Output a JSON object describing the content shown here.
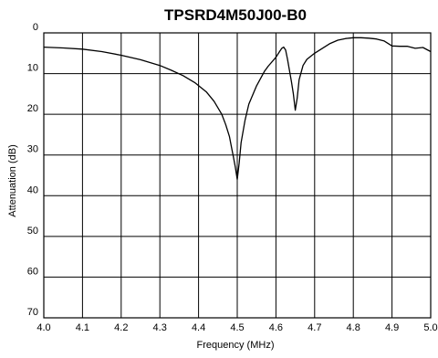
{
  "chart_data": {
    "type": "line",
    "title": "TPSRD4M50J00-B0",
    "xlabel": "Frequency  (MHz)",
    "ylabel": "Attenuation (dB)",
    "xlim": [
      4.0,
      5.0
    ],
    "ylim": [
      0,
      70
    ],
    "y_inverted": true,
    "grid": true,
    "x_ticks": [
      "4.0",
      "4.1",
      "4.2",
      "4.3",
      "4.4",
      "4.5",
      "4.6",
      "4.7",
      "4.8",
      "4.9",
      "5.0"
    ],
    "y_ticks": [
      "0",
      "10",
      "20",
      "30",
      "40",
      "50",
      "60",
      "70"
    ],
    "series": [
      {
        "x": [
          4.0,
          4.05,
          4.1,
          4.15,
          4.2,
          4.25,
          4.3,
          4.33,
          4.36,
          4.39,
          4.42,
          4.44,
          4.46,
          4.47,
          4.48,
          4.485,
          4.49,
          4.495,
          4.5,
          4.505,
          4.51,
          4.52,
          4.53,
          4.55,
          4.57,
          4.58,
          4.6,
          4.61,
          4.615,
          4.62,
          4.625,
          4.63,
          4.64,
          4.645,
          4.65,
          4.655,
          4.66,
          4.67,
          4.68,
          4.7,
          4.72,
          4.74,
          4.76,
          4.78,
          4.8,
          4.82,
          4.84,
          4.86,
          4.88,
          4.9,
          4.92,
          4.94,
          4.96,
          4.98,
          5.0
        ],
        "y": [
          3.5,
          3.7,
          4.0,
          4.6,
          5.5,
          6.6,
          8.0,
          9.2,
          10.5,
          12.2,
          14.5,
          16.8,
          20.0,
          22.5,
          25.5,
          28.0,
          30.5,
          33.0,
          36.0,
          32.0,
          27.0,
          21.5,
          17.5,
          13.0,
          9.5,
          8.2,
          6.0,
          4.5,
          3.8,
          3.5,
          4.2,
          6.5,
          12.0,
          15.0,
          19.0,
          16.0,
          11.5,
          8.0,
          6.5,
          5.0,
          3.8,
          2.6,
          1.8,
          1.4,
          1.2,
          1.2,
          1.3,
          1.5,
          2.0,
          3.2,
          3.3,
          3.3,
          3.8,
          3.6,
          4.6
        ]
      }
    ]
  }
}
